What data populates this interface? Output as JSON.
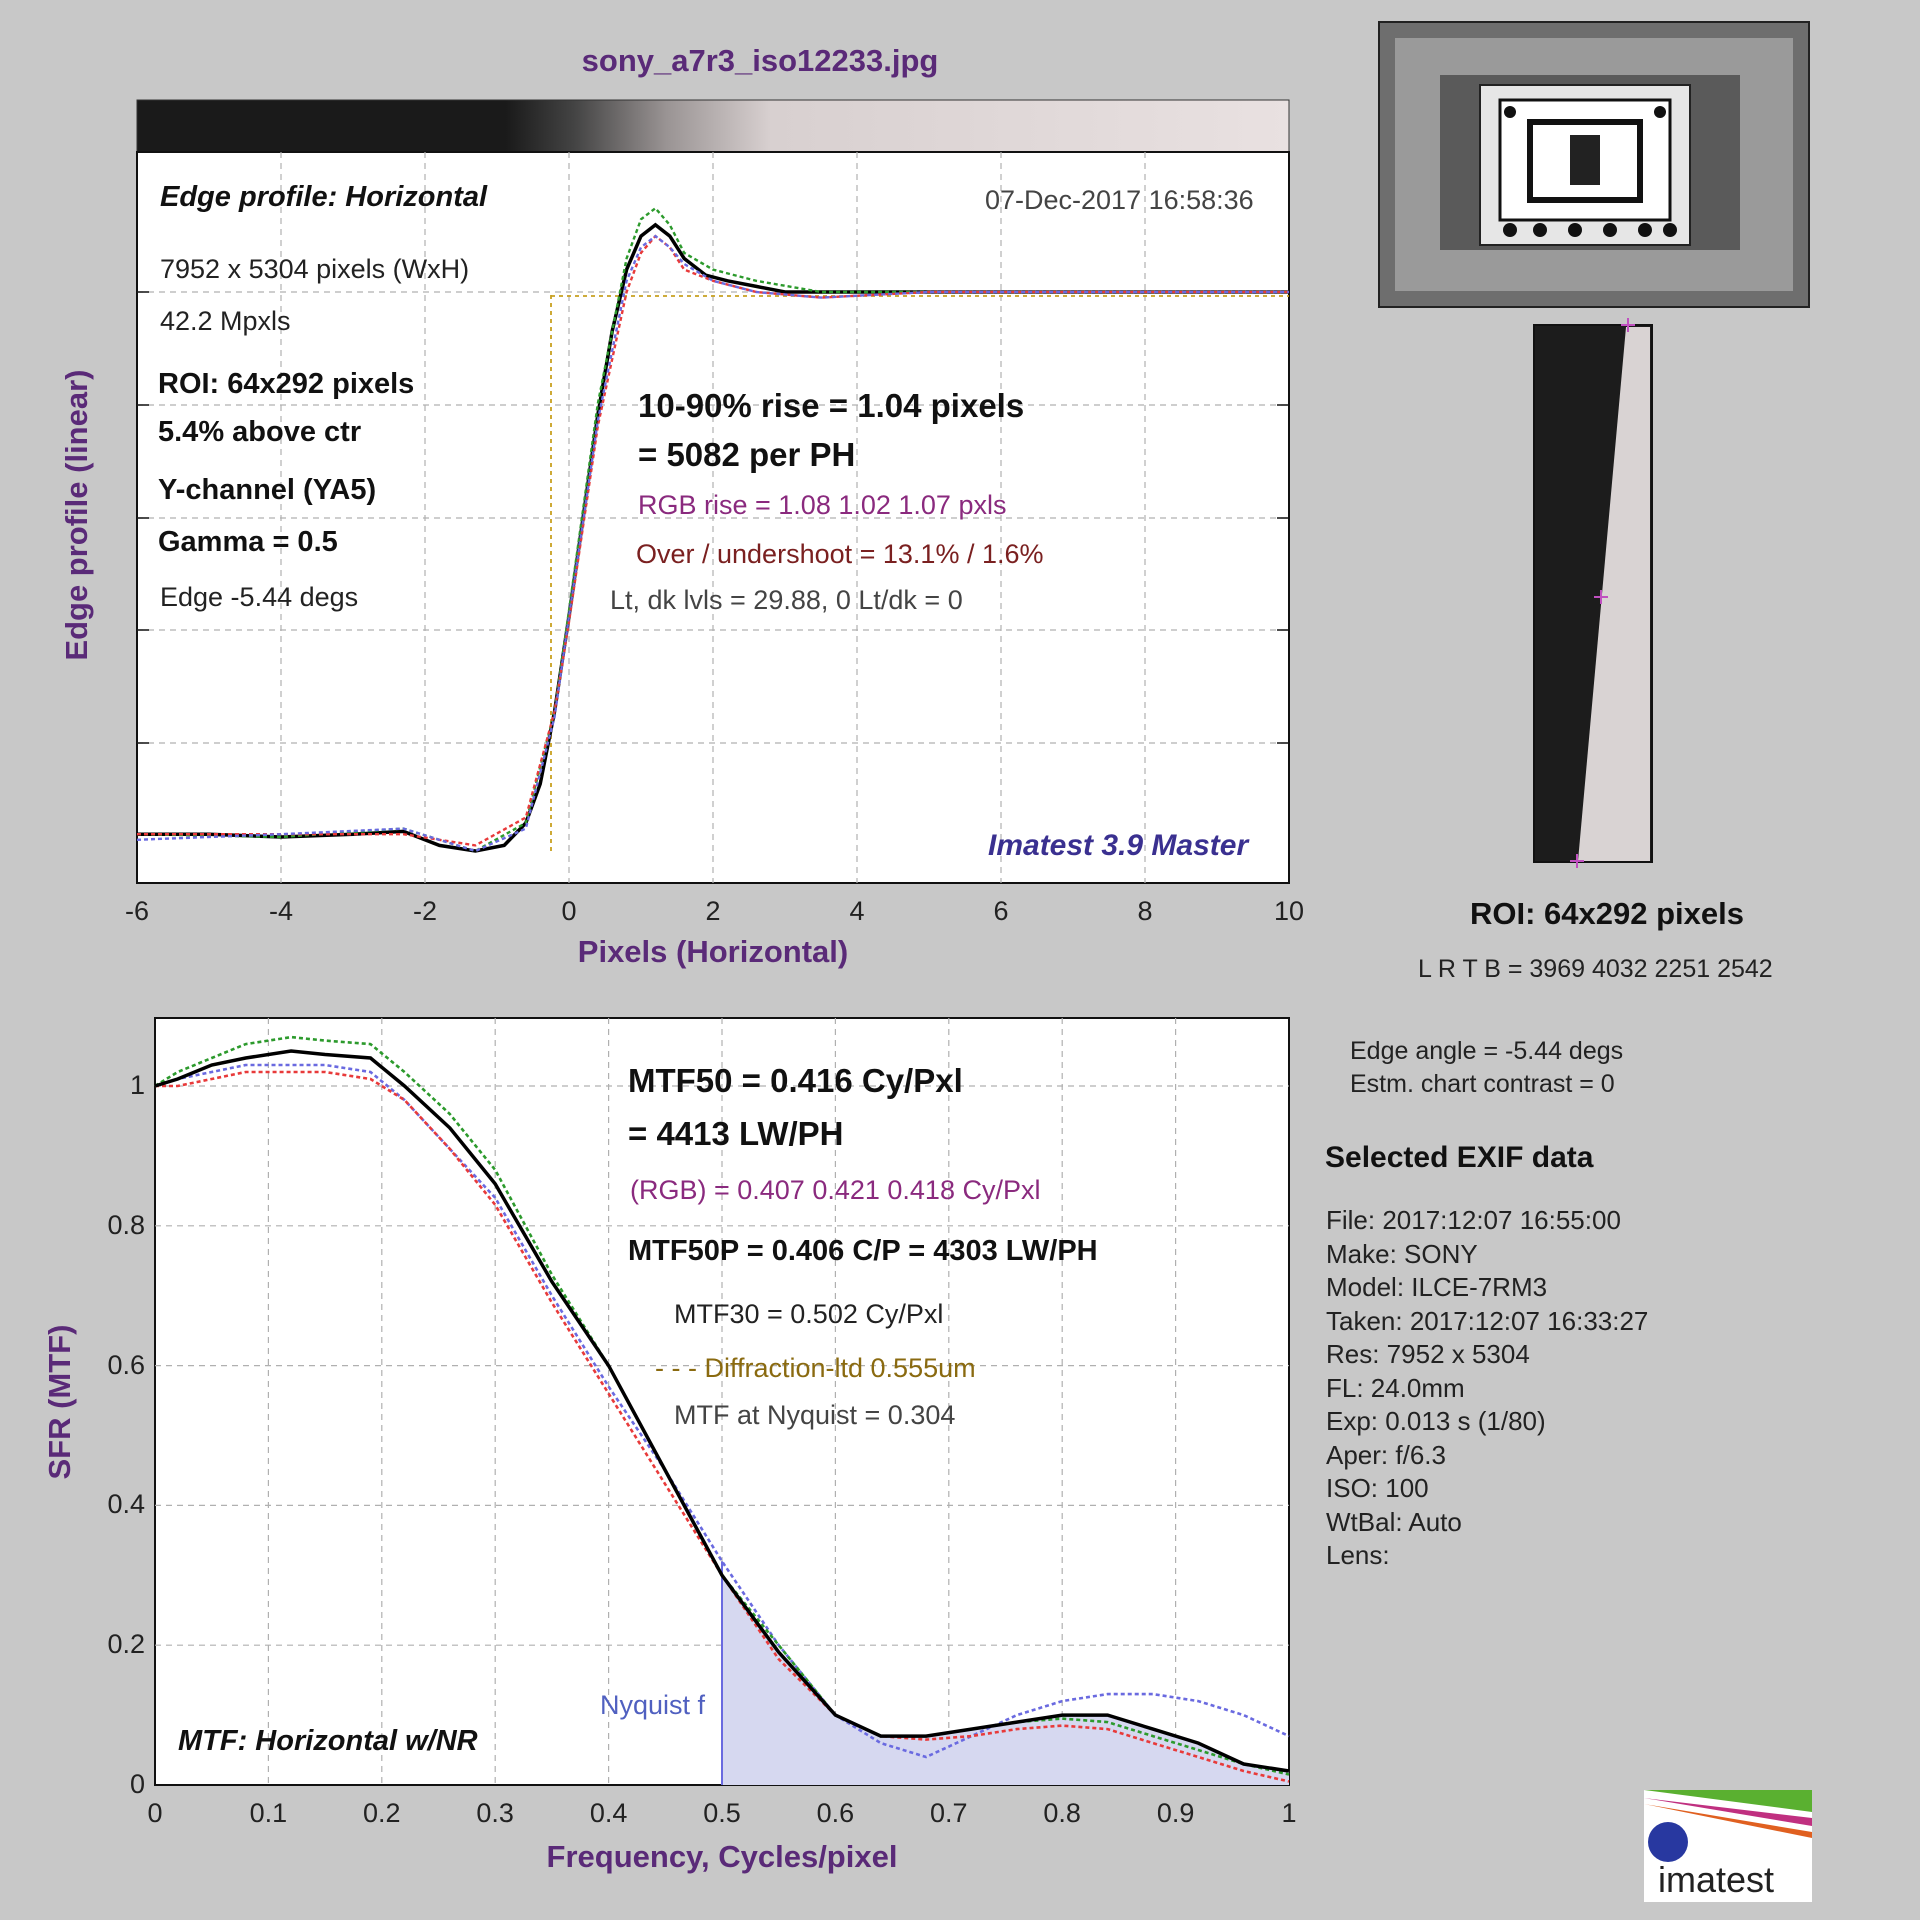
{
  "file_title": "sony_a7r3_iso12233.jpg",
  "edge_panel": {
    "title": "Edge profile: Horizontal",
    "timestamp": "07-Dec-2017 16:58:36",
    "dims": "7952 x 5304 pixels (WxH)",
    "mpx": "42.2 Mpxls",
    "roi": "ROI:  64x292 pixels",
    "above_ctr": "5.4% above ctr",
    "channel": "Y-channel  (YA5)",
    "gamma": "Gamma = 0.5",
    "edge_angle": "Edge -5.44 degs",
    "rise_line1": "10-90% rise = 1.04 pixels",
    "rise_line2": "= 5082 per PH",
    "rgb_rise": "RGB rise = 1.08  1.02  1.07 pxls",
    "overshoot": "Over / undershoot = 13.1% / 1.6%",
    "levels": "Lt, dk lvls = 29.88, 0   Lt/dk = 0",
    "watermark": "Imatest 3.9 Master"
  },
  "mtf_panel": {
    "mtf50": "MTF50 = 0.416 Cy/Pxl",
    "lwph": "= 4413 LW/PH",
    "rgb": "(RGB) = 0.407  0.421  0.418 Cy/Pxl",
    "mtf50p": "MTF50P = 0.406 C/P = 4303 LW/PH",
    "mtf30": "MTF30 = 0.502 Cy/Pxl",
    "diffraction": "- - - Diffraction-ltd  0.555um",
    "nyquist_mtf": "MTF at Nyquist = 0.304",
    "nyquist_label": "Nyquist f",
    "title": "MTF: Horizontal w/NR"
  },
  "right_panel": {
    "roi_title": "ROI:  64x292 pixels",
    "lrtb": "L R  T B = 3969 4032  2251 2542",
    "edge_angle": "Edge angle = -5.44 degs",
    "contrast": "Estm. chart contrast = 0",
    "exif_title": "Selected EXIF data",
    "exif": [
      "File:  2017:12:07 16:55:00",
      "Make:   SONY",
      "Model:  ILCE-7RM3",
      "Taken: 2017:12:07 16:33:27",
      "Res:    7952 x 5304",
      "FL:      24.0mm",
      "Exp:    0.013 s  (1/80)",
      "Aper:   f/6.3",
      "ISO:     100",
      "WtBal: Auto",
      "Lens:"
    ],
    "logo_text": "imatest"
  },
  "chart_data": [
    {
      "type": "line",
      "title": "",
      "xlabel": "Pixels (Horizontal)",
      "ylabel": "Edge profile (linear)",
      "xlim": [
        -6,
        10
      ],
      "x_ticks": [
        "-6",
        "-4",
        "-2",
        "0",
        "2",
        "4",
        "6",
        "8",
        "10"
      ],
      "grid": true,
      "series": [
        {
          "color": "#000000",
          "x": [
            -6,
            -5,
            -4,
            -3,
            -2.3,
            -1.8,
            -1.3,
            -0.9,
            -0.6,
            -0.4,
            -0.2,
            0,
            0.2,
            0.4,
            0.6,
            0.8,
            1.0,
            1.2,
            1.4,
            1.6,
            1.9,
            2.2,
            2.6,
            3,
            3.5,
            4,
            5,
            6,
            7,
            8,
            9,
            10
          ],
          "y": [
            0.03,
            0.03,
            0.025,
            0.03,
            0.035,
            0.01,
            0.0,
            0.01,
            0.05,
            0.12,
            0.25,
            0.42,
            0.6,
            0.78,
            0.93,
            1.04,
            1.1,
            1.12,
            1.1,
            1.06,
            1.03,
            1.02,
            1.01,
            1.0,
            1.0,
            1.0,
            1.0,
            1.0,
            1.0,
            1.0,
            1.0,
            1.0
          ]
        },
        {
          "color": "#2c9a2c",
          "x": [
            -6,
            -4,
            -2.3,
            -1.3,
            -0.6,
            -0.2,
            0,
            0.4,
            0.8,
            1.0,
            1.2,
            1.4,
            1.6,
            2.0,
            2.6,
            3.5,
            5,
            7,
            10
          ],
          "y": [
            0.03,
            0.025,
            0.04,
            0.0,
            0.05,
            0.25,
            0.43,
            0.8,
            1.06,
            1.13,
            1.15,
            1.12,
            1.07,
            1.04,
            1.02,
            1.0,
            1.0,
            1.0,
            1.0
          ]
        },
        {
          "color": "#e83a3a",
          "x": [
            -6,
            -4,
            -2.3,
            -1.3,
            -0.6,
            -0.2,
            0,
            0.4,
            0.8,
            1.0,
            1.2,
            1.4,
            1.6,
            2.0,
            2.6,
            3.5,
            5,
            7,
            10
          ],
          "y": [
            0.03,
            0.03,
            0.03,
            0.01,
            0.06,
            0.25,
            0.41,
            0.76,
            1.0,
            1.07,
            1.1,
            1.08,
            1.04,
            1.02,
            1.0,
            0.99,
            1.0,
            1.0,
            1.0
          ]
        },
        {
          "color": "#6a6ae0",
          "x": [
            -6,
            -4,
            -2.3,
            -1.3,
            -0.6,
            -0.2,
            0,
            0.4,
            0.8,
            1.0,
            1.2,
            1.4,
            1.6,
            2.0,
            2.6,
            3.5,
            5,
            7,
            10
          ],
          "y": [
            0.02,
            0.03,
            0.04,
            0.0,
            0.04,
            0.24,
            0.42,
            0.77,
            1.02,
            1.08,
            1.1,
            1.08,
            1.05,
            1.02,
            1.0,
            0.99,
            1.0,
            1.0,
            1.0
          ]
        }
      ],
      "rise_markers": {
        "x": [
          -0.25,
          0.8
        ],
        "level": 1.0
      }
    },
    {
      "type": "line",
      "title": "",
      "xlabel": "Frequency, Cycles/pixel",
      "ylabel": "SFR (MTF)",
      "xlim": [
        0,
        1
      ],
      "ylim": [
        0,
        1.1
      ],
      "x_ticks": [
        "0",
        "0.1",
        "0.2",
        "0.3",
        "0.4",
        "0.5",
        "0.6",
        "0.7",
        "0.8",
        "0.9",
        "1"
      ],
      "y_ticks": [
        "0",
        "0.2",
        "0.4",
        "0.6",
        "0.8",
        "1"
      ],
      "grid": true,
      "nyquist_x": 0.5,
      "series": [
        {
          "color": "#000000",
          "x": [
            0,
            0.02,
            0.05,
            0.08,
            0.12,
            0.15,
            0.19,
            0.22,
            0.26,
            0.3,
            0.35,
            0.4,
            0.45,
            0.5,
            0.55,
            0.6,
            0.64,
            0.68,
            0.72,
            0.76,
            0.8,
            0.84,
            0.88,
            0.92,
            0.96,
            1.0
          ],
          "y": [
            1.0,
            1.01,
            1.03,
            1.04,
            1.05,
            1.045,
            1.04,
            1.0,
            0.94,
            0.86,
            0.72,
            0.6,
            0.45,
            0.3,
            0.19,
            0.1,
            0.07,
            0.07,
            0.08,
            0.09,
            0.1,
            0.1,
            0.08,
            0.06,
            0.03,
            0.02
          ]
        },
        {
          "color": "#2c9a2c",
          "x": [
            0,
            0.02,
            0.05,
            0.08,
            0.12,
            0.15,
            0.19,
            0.22,
            0.26,
            0.3,
            0.35,
            0.4,
            0.45,
            0.5,
            0.55,
            0.6,
            0.64,
            0.68,
            0.72,
            0.76,
            0.8,
            0.84,
            0.88,
            0.92,
            0.96,
            1.0
          ],
          "y": [
            1.0,
            1.02,
            1.04,
            1.06,
            1.07,
            1.065,
            1.06,
            1.02,
            0.96,
            0.88,
            0.73,
            0.6,
            0.45,
            0.3,
            0.2,
            0.1,
            0.07,
            0.07,
            0.08,
            0.09,
            0.095,
            0.09,
            0.07,
            0.05,
            0.03,
            0.015
          ]
        },
        {
          "color": "#e83a3a",
          "x": [
            0,
            0.02,
            0.05,
            0.08,
            0.12,
            0.15,
            0.19,
            0.22,
            0.26,
            0.3,
            0.35,
            0.4,
            0.45,
            0.5,
            0.55,
            0.6,
            0.64,
            0.68,
            0.72,
            0.76,
            0.8,
            0.84,
            0.88,
            0.92,
            0.96,
            1.0
          ],
          "y": [
            1.0,
            1.0,
            1.01,
            1.02,
            1.02,
            1.02,
            1.01,
            0.98,
            0.91,
            0.83,
            0.69,
            0.56,
            0.43,
            0.3,
            0.18,
            0.1,
            0.07,
            0.065,
            0.07,
            0.08,
            0.085,
            0.08,
            0.06,
            0.04,
            0.02,
            0.005
          ]
        },
        {
          "color": "#6a6ae0",
          "x": [
            0,
            0.02,
            0.05,
            0.08,
            0.12,
            0.15,
            0.19,
            0.22,
            0.26,
            0.3,
            0.35,
            0.4,
            0.45,
            0.5,
            0.55,
            0.6,
            0.64,
            0.68,
            0.72,
            0.76,
            0.8,
            0.84,
            0.88,
            0.92,
            0.96,
            1.0
          ],
          "y": [
            1.0,
            1.01,
            1.02,
            1.03,
            1.03,
            1.03,
            1.02,
            0.98,
            0.91,
            0.84,
            0.7,
            0.57,
            0.45,
            0.32,
            0.2,
            0.1,
            0.06,
            0.04,
            0.07,
            0.1,
            0.12,
            0.13,
            0.13,
            0.12,
            0.1,
            0.07
          ]
        }
      ]
    }
  ]
}
